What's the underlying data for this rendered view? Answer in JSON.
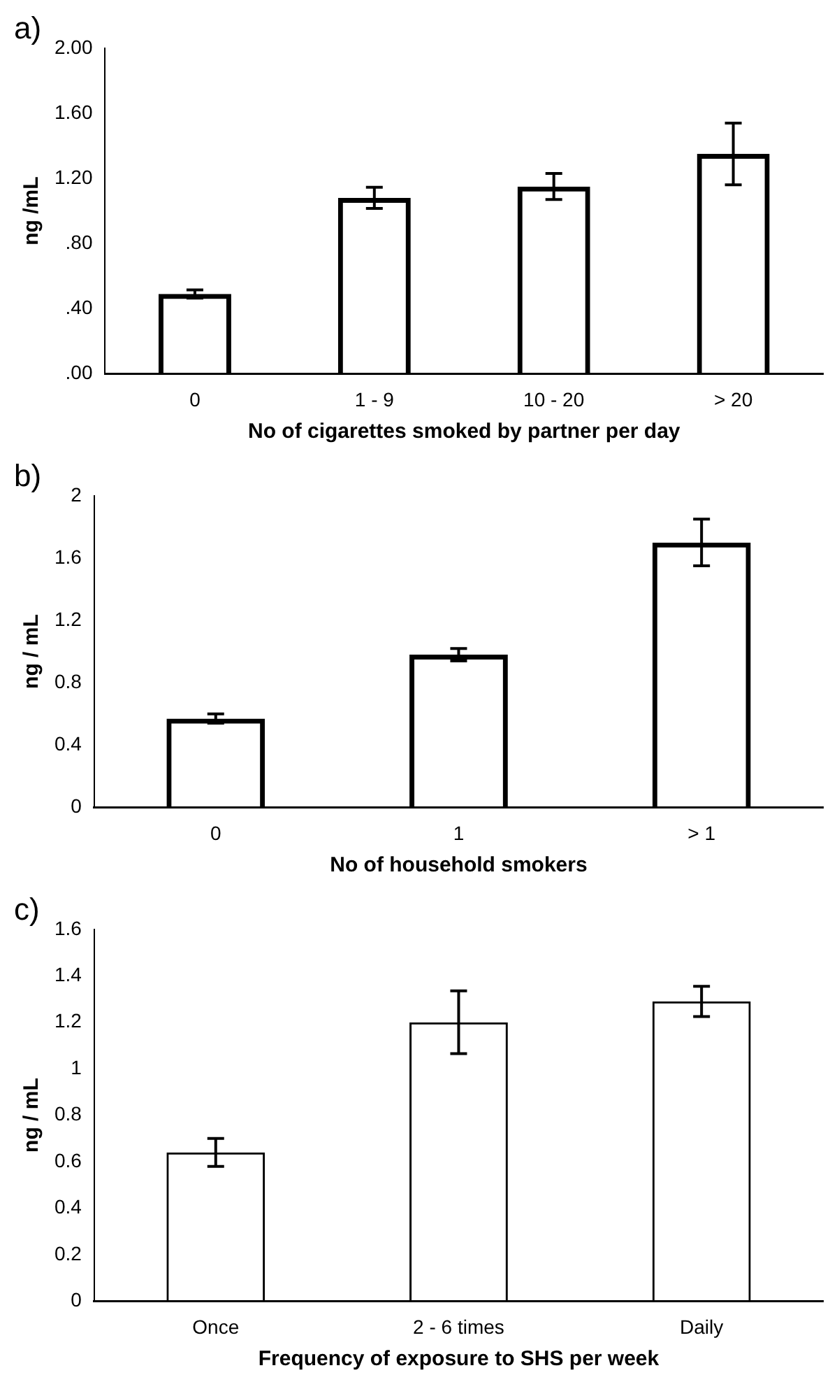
{
  "chart_data": [
    {
      "type": "bar",
      "title": "a)",
      "xlabel": "No of cigarettes smoked by partner per day",
      "ylabel": "ng /mL",
      "categories": [
        "0",
        "1 - 9",
        "10 - 20",
        "> 20"
      ],
      "values": [
        0.49,
        1.08,
        1.15,
        1.35
      ],
      "errors": [
        0.025,
        0.065,
        0.08,
        0.19
      ],
      "color": "#000000",
      "ylim": [
        0,
        2
      ],
      "yticks": [
        {
          "value": 0,
          "label": ".00"
        },
        {
          "value": 0.4,
          "label": ".40"
        },
        {
          "value": 0.8,
          "label": ".80"
        },
        {
          "value": 1.2,
          "label": "1.20"
        },
        {
          "value": 1.6,
          "label": "1.60"
        },
        {
          "value": 2,
          "label": "2.00"
        }
      ],
      "grid": false
    },
    {
      "type": "bar",
      "title": "b)",
      "xlabel": "No of household smokers",
      "ylabel": "ng / mL",
      "categories": [
        "0",
        "1",
        "> 1"
      ],
      "values": [
        0.57,
        0.98,
        1.7
      ],
      "errors": [
        0.03,
        0.04,
        0.15
      ],
      "color": "#000000",
      "ylim": [
        0,
        2
      ],
      "yticks": [
        0,
        {
          "value": 0.4,
          "label": "0.4"
        },
        {
          "value": 0.8,
          "label": "0.8"
        },
        {
          "value": 1.2,
          "label": "1.2"
        },
        {
          "value": 1.6,
          "label": "1.6"
        },
        2
      ],
      "grid": false
    },
    {
      "type": "bar",
      "title": "c)",
      "xlabel": "Frequency of exposure to SHS per week",
      "ylabel": "ng / mL",
      "categories": [
        "Once",
        "2 - 6 times",
        "Daily"
      ],
      "values": [
        0.64,
        1.2,
        1.29
      ],
      "errors": [
        0.06,
        0.135,
        0.065
      ],
      "color": "#000000",
      "ylim": [
        0,
        1.6
      ],
      "yticks": [
        0,
        0.2,
        0.4,
        0.6,
        0.8,
        1,
        1.2,
        1.4,
        1.6
      ],
      "grid": false
    }
  ]
}
